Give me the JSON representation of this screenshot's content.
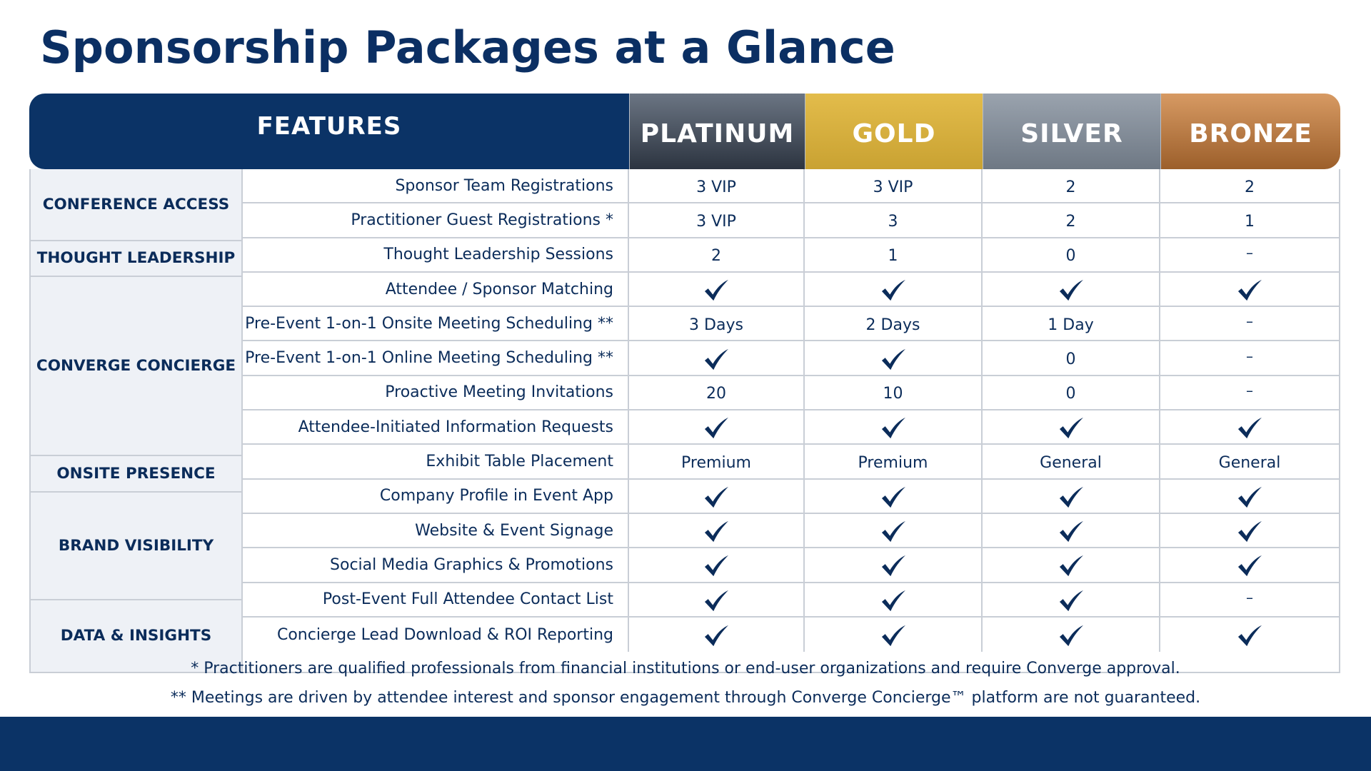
{
  "title": "Sponsorship Packages at a Glance",
  "header": {
    "features_label": "FEATURES",
    "tiers": [
      "PLATINUM",
      "GOLD",
      "SILVER",
      "BRONZE"
    ],
    "tier_colors": [
      "#2c3440",
      "#d4ad3c",
      "#7f8893",
      "#b57440"
    ]
  },
  "categories": [
    {
      "label": "CONFERENCE ACCESS",
      "rows": [
        {
          "feature": "Sponsor Team Registrations",
          "values": [
            "3 VIP",
            "3 VIP",
            "2",
            "2"
          ]
        },
        {
          "feature": "Practitioner Guest Registrations *",
          "values": [
            "3 VIP",
            "3",
            "2",
            "1"
          ]
        }
      ]
    },
    {
      "label": "THOUGHT LEADERSHIP",
      "rows": [
        {
          "feature": "Thought Leadership Sessions",
          "values": [
            "2",
            "1",
            "0",
            "–"
          ]
        }
      ]
    },
    {
      "label": "CONVERGE CONCIERGE",
      "rows": [
        {
          "feature": "Attendee / Sponsor Matching",
          "values": [
            "check",
            "check",
            "check",
            "check"
          ]
        },
        {
          "feature": "Pre-Event 1-on-1 Onsite Meeting Scheduling **",
          "values": [
            "3 Days",
            "2 Days",
            "1 Day",
            "–"
          ]
        },
        {
          "feature": "Pre-Event 1-on-1 Online Meeting Scheduling **",
          "values": [
            "check",
            "check",
            "0",
            "–"
          ]
        },
        {
          "feature": "Proactive Meeting Invitations",
          "values": [
            "20",
            "10",
            "0",
            "–"
          ]
        },
        {
          "feature": "Attendee-Initiated Information Requests",
          "values": [
            "check",
            "check",
            "check",
            "check"
          ]
        }
      ]
    },
    {
      "label": "ONSITE PRESENCE",
      "rows": [
        {
          "feature": "Exhibit Table Placement",
          "values": [
            "Premium",
            "Premium",
            "General",
            "General"
          ]
        }
      ]
    },
    {
      "label": "BRAND VISIBILITY",
      "rows": [
        {
          "feature": "Company Profile in Event App",
          "values": [
            "check",
            "check",
            "check",
            "check"
          ]
        },
        {
          "feature": "Website & Event Signage",
          "values": [
            "check",
            "check",
            "check",
            "check"
          ]
        },
        {
          "feature": "Social Media Graphics & Promotions",
          "values": [
            "check",
            "check",
            "check",
            "check"
          ]
        }
      ]
    },
    {
      "label": "DATA & INSIGHTS",
      "rows": [
        {
          "feature": "Post-Event Full Attendee Contact List",
          "values": [
            "check",
            "check",
            "check",
            "–"
          ]
        },
        {
          "feature": "Concierge Lead Download & ROI Reporting",
          "values": [
            "check",
            "check",
            "check",
            "check"
          ]
        }
      ]
    }
  ],
  "footnotes": [
    "* Practitioners are qualified professionals from financial institutions or end-user organizations and require Converge approval.",
    "** Meetings are driven by attendee interest and sponsor engagement through Converge Concierge™ platform are not guaranteed."
  ],
  "icons": {
    "check": "checkmark-icon",
    "none": "dash"
  }
}
